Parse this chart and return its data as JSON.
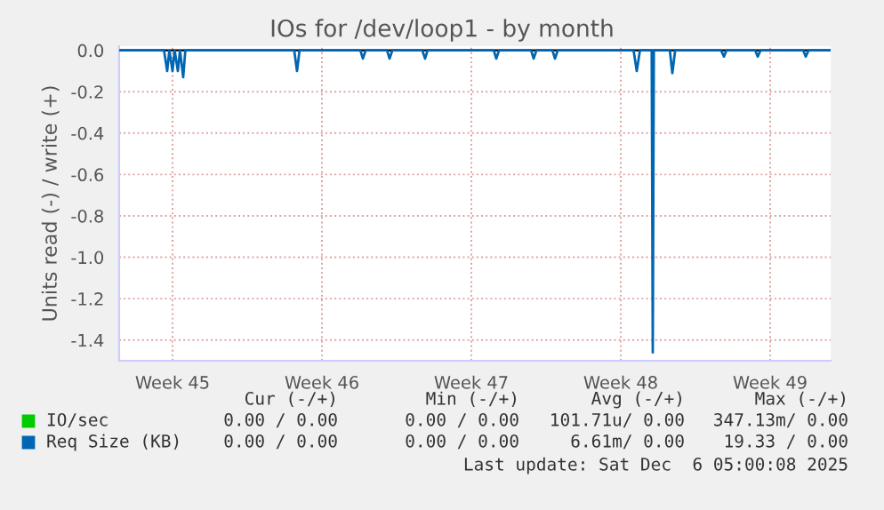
{
  "chart_data": {
    "type": "line",
    "title": "IOs for /dev/loop1 - by month",
    "ylabel": "Units read (-) / write (+)",
    "xlim": [
      "2025-11-04T00:00",
      "2025-12-07T08:00"
    ],
    "ylim": [
      -1.5,
      0.02
    ],
    "xticks": [
      {
        "value": "2025-11-06T12:00",
        "label": "Week 45"
      },
      {
        "value": "2025-11-13T12:00",
        "label": "Week 46"
      },
      {
        "value": "2025-11-20T12:00",
        "label": "Week 47"
      },
      {
        "value": "2025-11-27T12:00",
        "label": "Week 48"
      },
      {
        "value": "2025-12-04T12:00",
        "label": "Week 49"
      }
    ],
    "yticks": [
      {
        "value": 0,
        "label": "0.0"
      },
      -0.2,
      -0.4,
      -0.6,
      -0.8,
      {
        "value": -1,
        "label": "-1.0"
      },
      -1.2,
      -1.4
    ],
    "grid": true,
    "legend": "bottom",
    "ref_lines": [
      {
        "axis": "y",
        "value": 0,
        "color": "#000000"
      }
    ],
    "series": [
      {
        "name": "IO/sec",
        "color": "#00cc00"
      },
      {
        "name": "Req Size (KB)",
        "color": "#0066b3",
        "x": [
          "2025-11-04T00:00",
          "2025-11-06T02:24",
          "2025-11-06T06:00",
          "2025-11-06T08:24",
          "2025-11-06T12:00",
          "2025-11-06T14:24",
          "2025-11-06T18:00",
          "2025-11-06T20:24",
          "2025-11-07T00:00",
          "2025-11-07T02:24",
          "2025-11-12T04:48",
          "2025-11-12T08:00",
          "2025-11-12T10:48",
          "2025-11-15T07:12",
          "2025-11-15T10:00",
          "2025-11-15T13:12",
          "2025-11-16T13:12",
          "2025-11-16T16:00",
          "2025-11-16T19:12",
          "2025-11-18T04:48",
          "2025-11-18T08:00",
          "2025-11-18T10:48",
          "2025-11-21T13:12",
          "2025-11-21T16:00",
          "2025-11-21T19:12",
          "2025-11-23T07:12",
          "2025-11-23T10:00",
          "2025-11-23T13:12",
          "2025-11-24T07:12",
          "2025-11-24T10:00",
          "2025-11-24T13:12",
          "2025-11-28T02:24",
          "2025-11-28T06:00",
          "2025-11-28T09:36",
          "2025-11-28T22:48",
          "2025-11-29T00:00",
          "2025-11-29T01:12",
          "2025-11-29T19:12",
          "2025-11-29T22:00",
          "2025-11-30T01:12",
          "2025-12-02T04:48",
          "2025-12-02T08:00",
          "2025-12-02T10:48",
          "2025-12-03T19:12",
          "2025-12-03T22:00",
          "2025-12-04T01:12",
          "2025-12-06T01:12",
          "2025-12-06T04:00",
          "2025-12-06T07:12",
          "2025-12-07T08:00"
        ],
        "values": [
          0,
          0,
          -0.1,
          0,
          -0.1,
          0,
          -0.1,
          0,
          -0.13,
          0,
          0,
          -0.1,
          0,
          0,
          -0.04,
          0,
          0,
          -0.04,
          0,
          0,
          -0.04,
          0,
          0,
          -0.04,
          0,
          0,
          -0.04,
          0,
          0,
          -0.04,
          0,
          0,
          -0.1,
          0,
          0,
          -1.46,
          0,
          0,
          -0.11,
          0,
          0,
          -0.03,
          0,
          0,
          -0.03,
          0,
          0,
          -0.03,
          0,
          0
        ]
      }
    ],
    "annotations": [
      "Cur (-/+)",
      "Min (-/+)",
      "Avg (-/+)",
      "Max (-/+)",
      "0.00 / 0.00",
      "0.00 / 0.00",
      "101.71u/ 0.00",
      "347.13m/ 0.00",
      "0.00 / 0.00",
      "0.00 / 0.00",
      "6.61m/ 0.00",
      "19.33 / 0.00",
      "Last update: Sat Dec  6 05:00:08 2025"
    ]
  }
}
